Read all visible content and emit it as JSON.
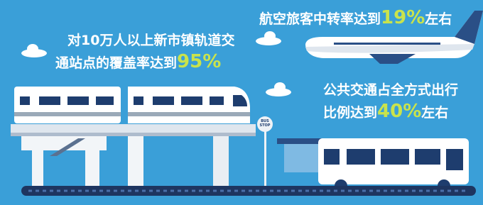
{
  "rail": {
    "line1": "对10万人以上新市镇轨道交",
    "line2": "通站点的覆盖率达到",
    "figure": "95%"
  },
  "air": {
    "text": "航空旅客中转率达到",
    "figure": "19%",
    "suffix": "左右"
  },
  "transit": {
    "line1": "公共交通占全方式出行",
    "line2": "比例达到",
    "figure": "40%",
    "suffix": "左右"
  },
  "bus_stop": {
    "line1": "BUS",
    "line2": "STOP"
  }
}
